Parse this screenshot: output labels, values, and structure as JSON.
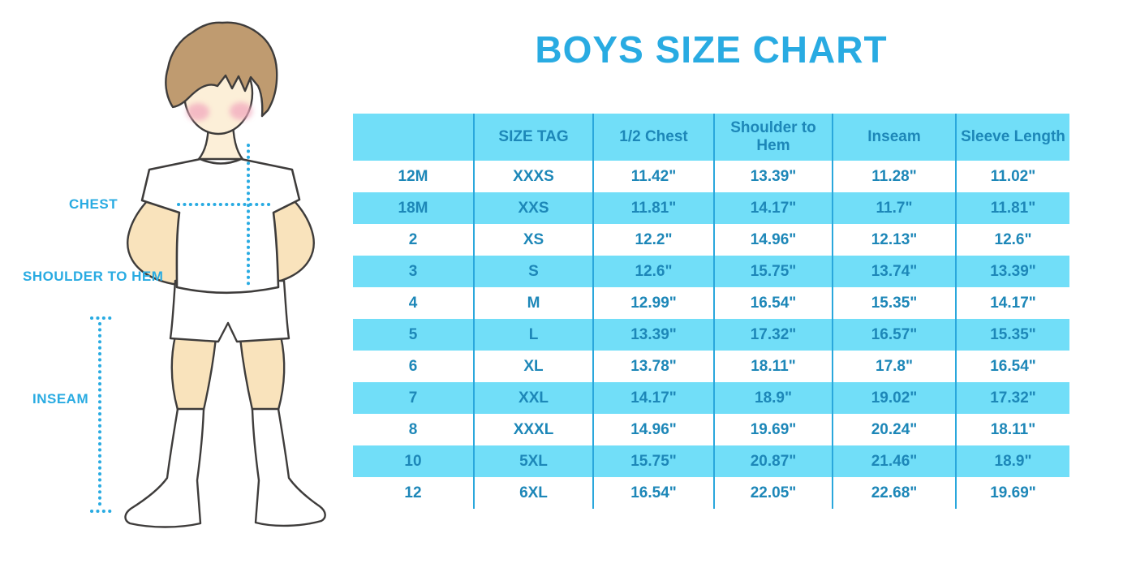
{
  "title_label": "BOYS SIZE CHART",
  "figure": {
    "labels": {
      "chest": "CHEST",
      "shoulder_to_hem": "SHOULDER TO HEM",
      "inseam": "INSEAM"
    }
  },
  "colors": {
    "accent": "#29abe2",
    "band": "#71def8",
    "cell_text": "#1d87b8",
    "grid_line": "#2aa7dc",
    "skin": "#f9e3bc",
    "face_skin": "#fcefd8",
    "hair": "#bf9b70",
    "cheek": "#f2a9be",
    "outline": "#3e3c3b"
  },
  "chart_data": {
    "type": "table",
    "title": "BOYS SIZE CHART",
    "columns": [
      "",
      "SIZE TAG",
      "1/2 Chest",
      "Shoulder to Hem",
      "Inseam",
      "Sleeve Length"
    ],
    "rows": [
      [
        "12M",
        "XXXS",
        "11.42\"",
        "13.39\"",
        "11.28\"",
        "11.02\""
      ],
      [
        "18M",
        "XXS",
        "11.81\"",
        "14.17\"",
        "11.7\"",
        "11.81\""
      ],
      [
        "2",
        "XS",
        "12.2\"",
        "14.96\"",
        "12.13\"",
        "12.6\""
      ],
      [
        "3",
        "S",
        "12.6\"",
        "15.75\"",
        "13.74\"",
        "13.39\""
      ],
      [
        "4",
        "M",
        "12.99\"",
        "16.54\"",
        "15.35\"",
        "14.17\""
      ],
      [
        "5",
        "L",
        "13.39\"",
        "17.32\"",
        "16.57\"",
        "15.35\""
      ],
      [
        "6",
        "XL",
        "13.78\"",
        "18.11\"",
        "17.8\"",
        "16.54\""
      ],
      [
        "7",
        "XXL",
        "14.17\"",
        "18.9\"",
        "19.02\"",
        "17.32\""
      ],
      [
        "8",
        "XXXL",
        "14.96\"",
        "19.69\"",
        "20.24\"",
        "18.11\""
      ],
      [
        "10",
        "5XL",
        "15.75\"",
        "20.87\"",
        "21.46\"",
        "18.9\""
      ],
      [
        "12",
        "6XL",
        "16.54\"",
        "22.05\"",
        "22.68\"",
        "19.69\""
      ]
    ],
    "units": "inches",
    "row_striping": [
      "white",
      "band"
    ],
    "legend_position": "none",
    "grid": "vertical-only"
  }
}
